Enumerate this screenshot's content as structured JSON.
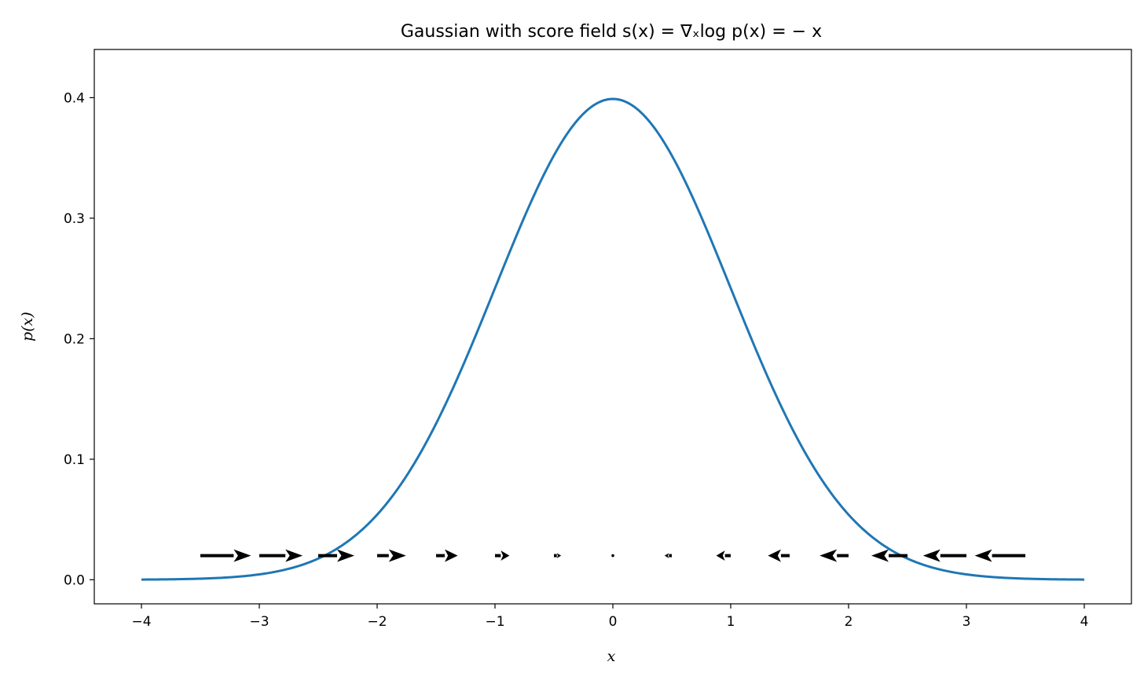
{
  "chart_data": {
    "type": "line",
    "title": "Gaussian with score field  s(x) = ∇ₓlog p(x) = − x",
    "xlabel": "x",
    "ylabel": "p(x)",
    "xlim": [
      -4.4,
      4.4
    ],
    "ylim": [
      -0.02,
      0.44
    ],
    "x_ticks": [
      -4,
      -3,
      -2,
      -1,
      0,
      1,
      2,
      3,
      4
    ],
    "x_tick_labels": [
      "−4",
      "−3",
      "−2",
      "−1",
      "0",
      "1",
      "2",
      "3",
      "4"
    ],
    "y_ticks": [
      0.0,
      0.1,
      0.2,
      0.3,
      0.4
    ],
    "y_tick_labels": [
      "0.0",
      "0.1",
      "0.2",
      "0.3",
      "0.4"
    ],
    "grid": false,
    "series": [
      {
        "type": "line",
        "color": "#1f77b4",
        "x": [
          -4.0,
          -3.5,
          -3.0,
          -2.5,
          -2.0,
          -1.75,
          -1.5,
          -1.25,
          -1.0,
          -0.75,
          -0.5,
          -0.25,
          0.0,
          0.25,
          0.5,
          0.75,
          1.0,
          1.25,
          1.5,
          1.75,
          2.0,
          2.5,
          3.0,
          3.5,
          4.0
        ],
        "y": [
          0.0001,
          0.0009,
          0.0044,
          0.0175,
          0.054,
          0.0863,
          0.1295,
          0.1826,
          0.242,
          0.3011,
          0.3521,
          0.3867,
          0.3989,
          0.3867,
          0.3521,
          0.3011,
          0.242,
          0.1826,
          0.1295,
          0.0863,
          0.054,
          0.0175,
          0.0044,
          0.0009,
          0.0001
        ]
      },
      {
        "type": "quiver",
        "color": "#000000",
        "x": [
          -3.5,
          -3.0,
          -2.5,
          -2.0,
          -1.5,
          -1.0,
          -0.5,
          0.0,
          0.5,
          1.0,
          1.5,
          2.0,
          2.5,
          3.0,
          3.5
        ],
        "y": [
          0.02,
          0.02,
          0.02,
          0.02,
          0.02,
          0.02,
          0.02,
          0.02,
          0.02,
          0.02,
          0.02,
          0.02,
          0.02,
          0.02,
          0.02
        ],
        "u": [
          3.5,
          3.0,
          2.5,
          2.0,
          1.5,
          1.0,
          0.5,
          0.0,
          -0.5,
          -1.0,
          -1.5,
          -2.0,
          -2.5,
          -3.0,
          -3.5
        ]
      }
    ]
  }
}
